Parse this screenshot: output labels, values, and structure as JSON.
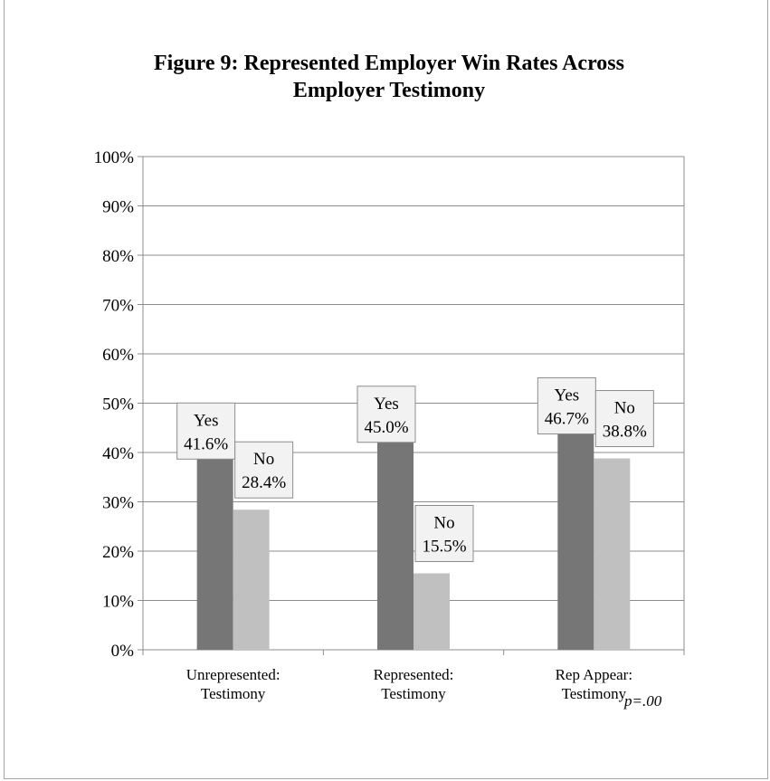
{
  "chart_data": {
    "type": "bar",
    "title": "Figure 9: Represented Employer Win Rates Across Employer Testimony",
    "categories": [
      "Unrepresented: Testimony",
      "Represented: Testimony",
      "Rep Appear: Testimony"
    ],
    "category_lines": [
      [
        "Unrepresented:",
        "Testimony"
      ],
      [
        "Represented:",
        "Testimony"
      ],
      [
        "Rep Appear:",
        "Testimony"
      ]
    ],
    "series": [
      {
        "name": "Yes",
        "values": [
          41.6,
          45.0,
          46.7
        ],
        "labels": [
          "41.6%",
          "45.0%",
          "46.7%"
        ],
        "color": "#767676"
      },
      {
        "name": "No",
        "values": [
          28.4,
          15.5,
          38.8
        ],
        "labels": [
          "28.4%",
          "15.5%",
          "38.8%"
        ],
        "color": "#c0c0c0"
      }
    ],
    "ylim": [
      0,
      100
    ],
    "yticks": [
      "0%",
      "10%",
      "20%",
      "30%",
      "40%",
      "50%",
      "60%",
      "70%",
      "80%",
      "90%",
      "100%"
    ],
    "xlabel": "",
    "ylabel": "",
    "grid": true,
    "legend": "none",
    "annotation": "p=.00"
  }
}
